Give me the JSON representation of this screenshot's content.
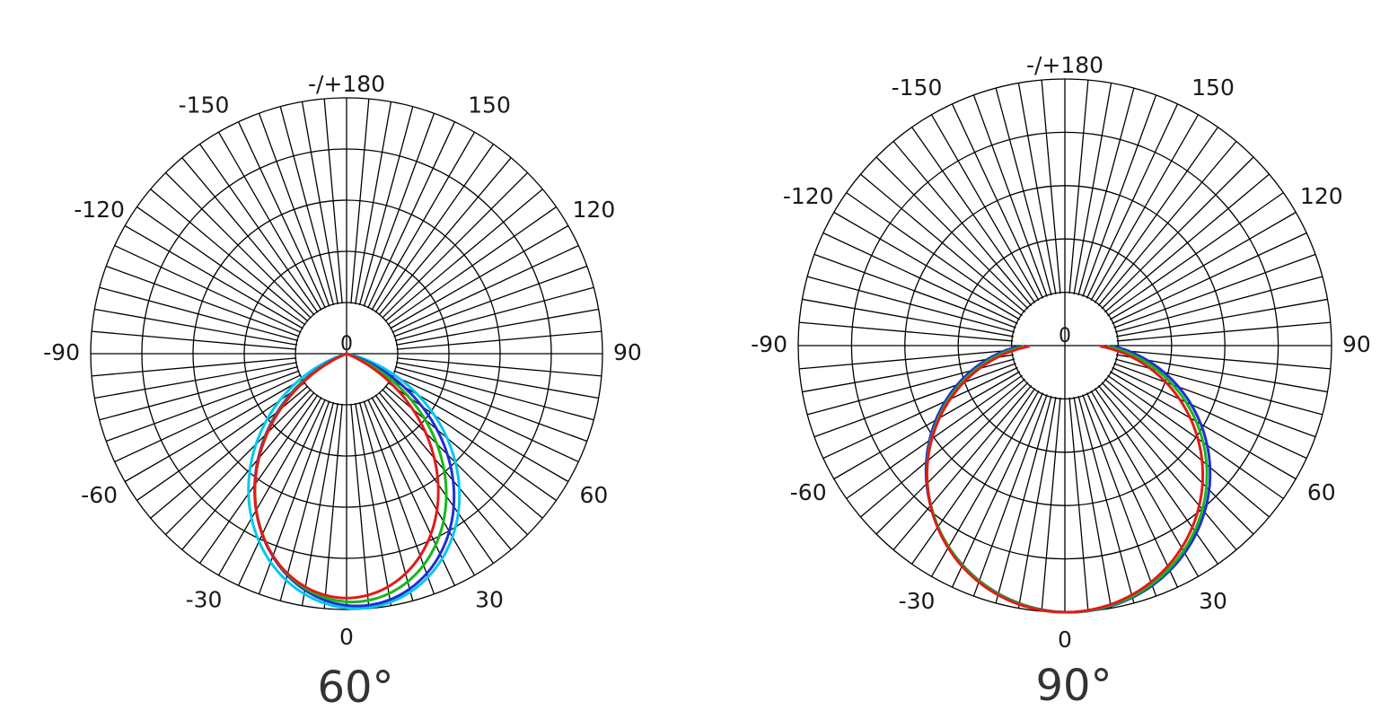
{
  "chart_data": [
    {
      "type": "polar",
      "title": "60°",
      "center_label": "0",
      "angle_ticks": [
        {
          "angle": 180,
          "label": "-/+180"
        },
        {
          "angle": -150,
          "label": "-150"
        },
        {
          "angle": 150,
          "label": "150"
        },
        {
          "angle": -120,
          "label": "-120"
        },
        {
          "angle": 120,
          "label": "120"
        },
        {
          "angle": -90,
          "label": "-90"
        },
        {
          "angle": 90,
          "label": "90"
        },
        {
          "angle": -60,
          "label": "-60"
        },
        {
          "angle": 60,
          "label": "60"
        },
        {
          "angle": -30,
          "label": "-30"
        },
        {
          "angle": 30,
          "label": "30"
        },
        {
          "angle": 0,
          "label": "0"
        }
      ],
      "rings": 5,
      "radial_spokes_step_deg": 5,
      "series": [
        {
          "color": "#00c8f0",
          "beam_half_angle": 38,
          "max": 0.995,
          "tilt": 2,
          "skew": 0.04
        },
        {
          "color": "#1f2fd6",
          "beam_half_angle": 36,
          "max": 0.985,
          "tilt": 2,
          "skew": 0.05
        },
        {
          "color": "#17b81a",
          "beam_half_angle": 35,
          "max": 0.97,
          "tilt": 1,
          "skew": 0.03
        },
        {
          "color": "#e31a1a",
          "beam_half_angle": 34,
          "max": 0.955,
          "tilt": 0,
          "skew": 0.0
        }
      ]
    },
    {
      "type": "polar",
      "title": "90°",
      "center_label": "0",
      "angle_ticks": [
        {
          "angle": 180,
          "label": "-/+180"
        },
        {
          "angle": -150,
          "label": "-150"
        },
        {
          "angle": 150,
          "label": "150"
        },
        {
          "angle": -120,
          "label": "-120"
        },
        {
          "angle": 120,
          "label": "120"
        },
        {
          "angle": -90,
          "label": "-90"
        },
        {
          "angle": 90,
          "label": "90"
        },
        {
          "angle": -60,
          "label": "-60"
        },
        {
          "angle": 60,
          "label": "60"
        },
        {
          "angle": -30,
          "label": "-30"
        },
        {
          "angle": 30,
          "label": "30"
        },
        {
          "angle": 0,
          "label": "0"
        }
      ],
      "rings": 5,
      "radial_spokes_step_deg": 5,
      "series": [
        {
          "color": "#1f2fd6",
          "beam_half_angle": 52,
          "max": 1.0,
          "tilt": 0,
          "skew": 0.03
        },
        {
          "color": "#17b81a",
          "beam_half_angle": 51,
          "max": 1.0,
          "tilt": 0,
          "skew": 0.02
        },
        {
          "color": "#e31a1a",
          "beam_half_angle": 50,
          "max": 1.0,
          "tilt": 0,
          "skew": 0.0
        }
      ]
    }
  ]
}
